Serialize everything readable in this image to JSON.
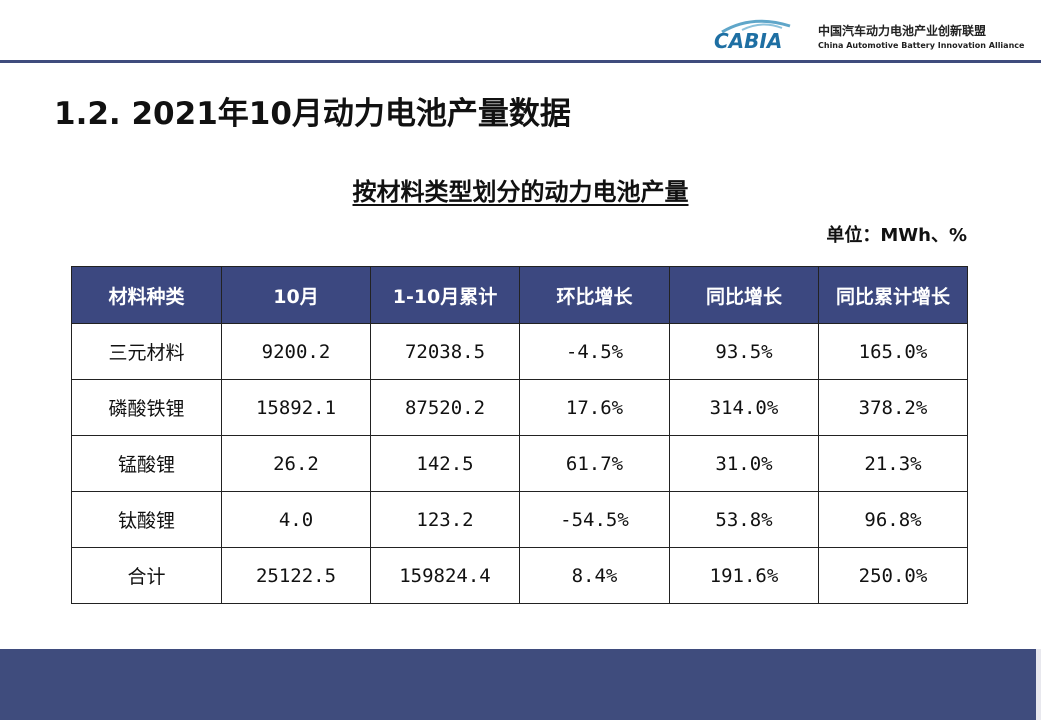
{
  "header": {
    "logo_mark": "CABIA",
    "logo_cn": "中国汽车动力电池产业创新联盟",
    "logo_en": "China Automotive Battery Innovation Alliance",
    "accent_color": "#3f4c7d"
  },
  "slide_title": "1.2.  2021年10月动力电池产量数据",
  "table_title": "按材料类型划分的动力电池产量",
  "unit": "单位：MWh、%",
  "table": {
    "headers": [
      "材料种类",
      "10月",
      "1-10月累计",
      "环比增长",
      "同比增长",
      "同比累计增长"
    ],
    "rows": [
      [
        "三元材料",
        "9200.2",
        "72038.5",
        "-4.5%",
        "93.5%",
        "165.0%"
      ],
      [
        "磷酸铁锂",
        "15892.1",
        "87520.2",
        "17.6%",
        "314.0%",
        "378.2%"
      ],
      [
        "锰酸锂",
        "26.2",
        "142.5",
        "61.7%",
        "31.0%",
        "21.3%"
      ],
      [
        "钛酸锂",
        "4.0",
        "123.2",
        "-54.5%",
        "53.8%",
        "96.8%"
      ],
      [
        "合计",
        "25122.5",
        "159824.4",
        "8.4%",
        "191.6%",
        "250.0%"
      ]
    ]
  }
}
